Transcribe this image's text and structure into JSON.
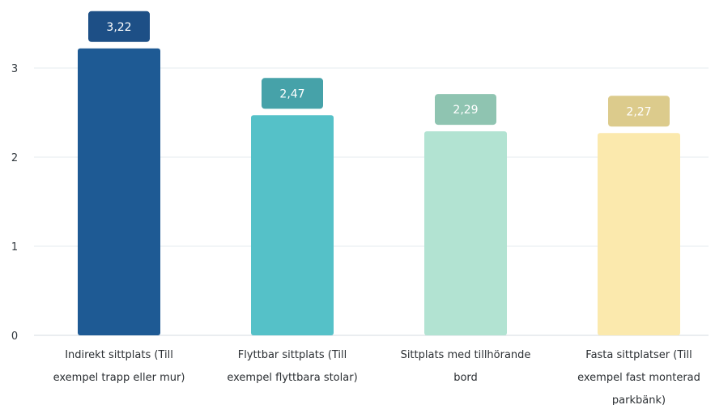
{
  "chart_data": {
    "type": "bar",
    "title": "",
    "xlabel": "",
    "ylabel": "",
    "ylim": [
      0,
      3.5
    ],
    "yticks": [
      0,
      1,
      2,
      3
    ],
    "grid": true,
    "categories": [
      [
        "Indirekt sittplats (Till",
        "exempel trapp eller mur)"
      ],
      [
        "Flyttbar sittplats (Till",
        "exempel flyttbara stolar)"
      ],
      [
        "Sittplats med tillhörande",
        "bord"
      ],
      [
        "Fasta sittplatser (Till",
        "exempel fast monterad",
        "parkbänk)"
      ]
    ],
    "values": [
      3.22,
      2.47,
      2.29,
      2.27
    ],
    "value_labels": [
      "3,22",
      "2,47",
      "2,29",
      "2,27"
    ],
    "bar_colors": [
      "#1e5a94",
      "#55c1c8",
      "#b2e3d2",
      "#fbe9ad"
    ],
    "label_colors": [
      "#1d4f86",
      "#46a2a9",
      "#8fc4b1",
      "#dccb8c"
    ]
  }
}
